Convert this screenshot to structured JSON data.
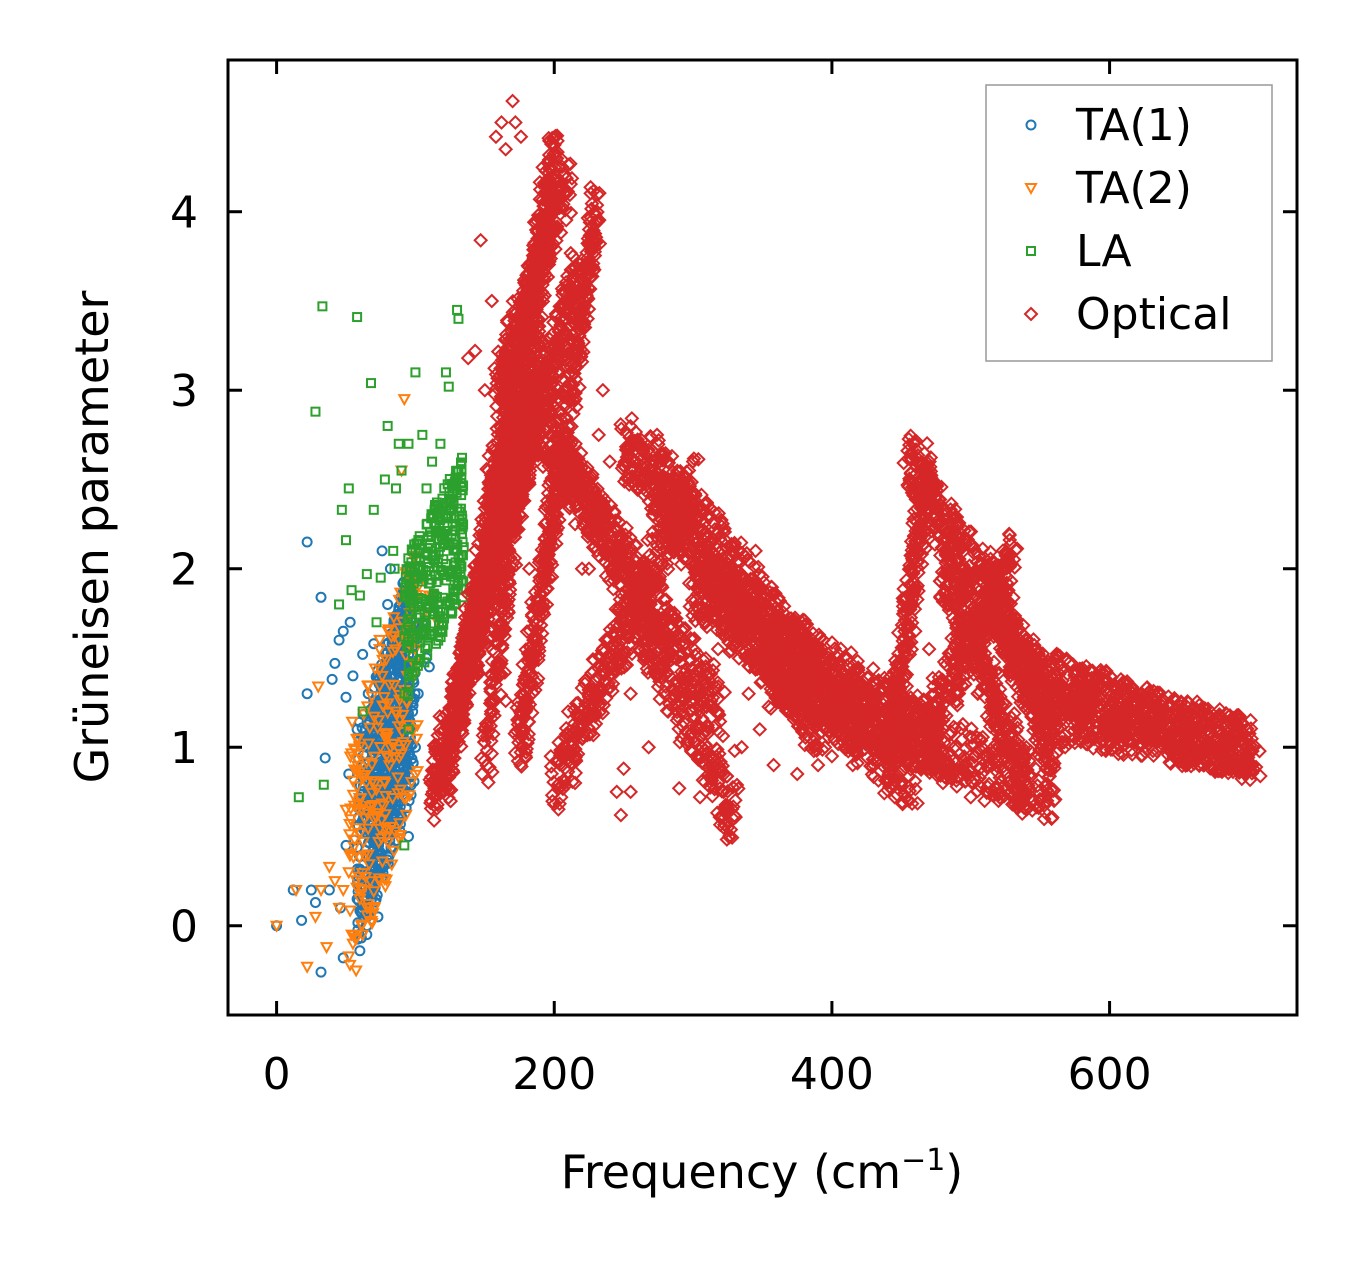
{
  "chart_data": {
    "type": "scatter",
    "title": "",
    "xlabel": "Frequency (cm",
    "xlabel_sup": "−1",
    "xlabel_close": ")",
    "ylabel": "Grüneisen parameter",
    "xlim": [
      -35,
      735
    ],
    "ylim": [
      -0.5,
      4.85
    ],
    "xticks": [
      0,
      200,
      400,
      600
    ],
    "xtick_labels": [
      "0",
      "200",
      "400",
      "600"
    ],
    "yticks": [
      0,
      1,
      2,
      3,
      4
    ],
    "ytick_labels": [
      "0",
      "1",
      "2",
      "3",
      "4"
    ],
    "legend_position": "top-right",
    "grid": false,
    "series": [
      {
        "name": "TA(1)",
        "marker": "circle",
        "color": "#1f77b4",
        "points": [
          [
            0,
            0
          ],
          [
            12,
            0.2
          ],
          [
            18,
            0.03
          ],
          [
            22,
            1.3
          ],
          [
            22,
            2.15
          ],
          [
            25,
            0.2
          ],
          [
            28,
            0.13
          ],
          [
            32,
            1.84
          ],
          [
            32,
            -0.26
          ],
          [
            35,
            0.94
          ],
          [
            38,
            0.2
          ],
          [
            40,
            1.38
          ],
          [
            42,
            1.47
          ],
          [
            45,
            1.6
          ],
          [
            46,
            0.1
          ],
          [
            48,
            1.65
          ],
          [
            48,
            -0.18
          ],
          [
            50,
            1.28
          ],
          [
            50,
            0.45
          ],
          [
            52,
            0.85
          ],
          [
            53,
            1.7
          ],
          [
            55,
            1.4
          ],
          [
            56,
            0.48
          ],
          [
            58,
            0.15
          ],
          [
            58,
            1.1
          ],
          [
            60,
            -0.14
          ],
          [
            60,
            0.7
          ],
          [
            62,
            1.52
          ],
          [
            63,
            0.35
          ],
          [
            65,
            -0.05
          ],
          [
            65,
            1.0
          ],
          [
            66,
            1.3
          ],
          [
            68,
            0.75
          ],
          [
            70,
            1.58
          ],
          [
            72,
            0.5
          ],
          [
            73,
            0.05
          ],
          [
            75,
            1.2
          ],
          [
            76,
            2.1
          ],
          [
            78,
            0.9
          ],
          [
            80,
            1.8
          ],
          [
            82,
            2.0
          ],
          [
            84,
            0.6
          ],
          [
            85,
            1.4
          ],
          [
            88,
            1.1
          ],
          [
            90,
            0.75
          ],
          [
            92,
            1.55
          ],
          [
            95,
            0.5
          ],
          [
            98,
            1.2
          ],
          [
            100,
            1.0
          ],
          [
            102,
            1.3
          ],
          [
            105,
            1.7
          ],
          [
            108,
            1.5
          ],
          [
            110,
            1.45
          ]
        ],
        "clouds": [
          {
            "x": [
              58,
              100
            ],
            "y": [
              0.15,
              1.75
            ],
            "n": 420,
            "slope": 0.032
          },
          {
            "x": [
              68,
              96
            ],
            "y": [
              0.4,
              1.8
            ],
            "n": 380,
            "slope": 0.0
          }
        ]
      },
      {
        "name": "TA(2)",
        "marker": "triangle-down",
        "color": "#ff7f0e",
        "points": [
          [
            0,
            0
          ],
          [
            14,
            0.2
          ],
          [
            22,
            -0.23
          ],
          [
            28,
            0.05
          ],
          [
            30,
            1.34
          ],
          [
            32,
            0.2
          ],
          [
            36,
            -0.12
          ],
          [
            38,
            0.33
          ],
          [
            42,
            0.25
          ],
          [
            45,
            0.1
          ],
          [
            48,
            0.2
          ],
          [
            50,
            0.65
          ],
          [
            52,
            0.3
          ],
          [
            55,
            -0.1
          ],
          [
            58,
            0.78
          ],
          [
            60,
            0.15
          ],
          [
            62,
            -0.05
          ],
          [
            66,
            0.4
          ],
          [
            70,
            0.6
          ],
          [
            74,
            0.25
          ],
          [
            78,
            0.8
          ],
          [
            82,
            1.0
          ],
          [
            86,
            1.2
          ],
          [
            88,
            1.6
          ],
          [
            90,
            2.55
          ],
          [
            92,
            2.95
          ],
          [
            94,
            1.4
          ],
          [
            96,
            1.75
          ],
          [
            100,
            1.55
          ],
          [
            102,
            1.9
          ],
          [
            106,
            1.75
          ],
          [
            110,
            1.85
          ],
          [
            112,
            1.85
          ],
          [
            116,
            1.7
          ]
        ],
        "clouds": [
          {
            "x": [
              52,
              102
            ],
            "y": [
              0.0,
              1.85
            ],
            "n": 220,
            "slope": 0.04
          }
        ]
      },
      {
        "name": "LA",
        "marker": "square",
        "color": "#2ca02c",
        "points": [
          [
            16,
            0.72
          ],
          [
            28,
            2.88
          ],
          [
            33,
            3.47
          ],
          [
            34,
            0.79
          ],
          [
            45,
            1.8
          ],
          [
            47,
            2.33
          ],
          [
            50,
            2.16
          ],
          [
            52,
            2.45
          ],
          [
            54,
            1.88
          ],
          [
            58,
            3.41
          ],
          [
            60,
            1.85
          ],
          [
            62,
            1.2
          ],
          [
            65,
            1.97
          ],
          [
            68,
            3.04
          ],
          [
            70,
            2.33
          ],
          [
            72,
            1.7
          ],
          [
            75,
            1.95
          ],
          [
            78,
            2.5
          ],
          [
            80,
            2.8
          ],
          [
            84,
            2.1
          ],
          [
            86,
            2.45
          ],
          [
            88,
            2.7
          ],
          [
            90,
            2.55
          ],
          [
            95,
            2.7
          ],
          [
            98,
            2.1
          ],
          [
            100,
            3.1
          ],
          [
            105,
            2.75
          ],
          [
            108,
            2.45
          ],
          [
            112,
            2.6
          ],
          [
            116,
            2.35
          ],
          [
            118,
            2.7
          ],
          [
            122,
            3.1
          ],
          [
            124,
            3.02
          ],
          [
            128,
            2.45
          ],
          [
            130,
            3.45
          ],
          [
            131,
            3.4
          ],
          [
            132,
            2.0
          ],
          [
            134,
            1.6
          ],
          [
            85,
            2.0
          ],
          [
            92,
            0.45
          ],
          [
            95,
            1.1
          ],
          [
            100,
            1.95
          ]
        ],
        "clouds": [
          {
            "x": [
              92,
              135
            ],
            "y": [
              1.45,
              2.45
            ],
            "n": 300,
            "slope": 0.012
          }
        ]
      },
      {
        "name": "Optical",
        "marker": "diamond",
        "color": "#d62728",
        "points": [
          [
            138,
            3.18
          ],
          [
            143,
            3.22
          ],
          [
            147,
            3.84
          ],
          [
            150,
            3.0
          ],
          [
            155,
            3.5
          ],
          [
            158,
            4.42
          ],
          [
            162,
            4.5
          ],
          [
            165,
            4.35
          ],
          [
            170,
            4.62
          ],
          [
            172,
            4.5
          ],
          [
            176,
            4.42
          ],
          [
            182,
            2.0
          ],
          [
            186,
            3.0
          ],
          [
            192,
            2.9
          ],
          [
            196,
            2.1
          ],
          [
            200,
            0.68
          ],
          [
            205,
            0.72
          ],
          [
            210,
            1.2
          ],
          [
            215,
            0.8
          ],
          [
            220,
            2.0
          ],
          [
            225,
            2.0
          ],
          [
            230,
            2.3
          ],
          [
            235,
            3.0
          ],
          [
            240,
            2.6
          ],
          [
            245,
            0.75
          ],
          [
            248,
            0.62
          ],
          [
            250,
            0.88
          ],
          [
            255,
            1.3
          ],
          [
            262,
            2.7
          ],
          [
            268,
            1.0
          ],
          [
            274,
            2.75
          ],
          [
            280,
            2.4
          ],
          [
            290,
            0.77
          ],
          [
            300,
            2.6
          ],
          [
            305,
            0.72
          ],
          [
            310,
            1.0
          ],
          [
            315,
            0.88
          ],
          [
            322,
            0.55
          ],
          [
            330,
            0.98
          ],
          [
            340,
            1.3
          ],
          [
            345,
            2.1
          ],
          [
            348,
            1.1
          ],
          [
            358,
            0.9
          ],
          [
            375,
            0.85
          ],
          [
            390,
            0.9
          ],
          [
            400,
            0.95
          ],
          [
            410,
            1.0
          ],
          [
            420,
            1.12
          ],
          [
            430,
            1.1
          ],
          [
            440,
            0.76
          ],
          [
            450,
            0.8
          ],
          [
            460,
            1.65
          ],
          [
            470,
            0.9
          ],
          [
            480,
            0.8
          ],
          [
            490,
            0.78
          ],
          [
            500,
            0.72
          ],
          [
            510,
            0.7
          ],
          [
            520,
            0.7
          ],
          [
            530,
            0.68
          ],
          [
            535,
            0.68
          ],
          [
            540,
            0.68
          ],
          [
            545,
            0.7
          ],
          [
            550,
            0.7
          ],
          [
            555,
            0.7
          ],
          [
            560,
            0.7
          ],
          [
            505,
            1.3
          ],
          [
            512,
            0.9
          ],
          [
            525,
            1.1
          ],
          [
            540,
            1.0
          ],
          [
            548,
            1.45
          ],
          [
            560,
            1.2
          ],
          [
            568,
            1.0
          ],
          [
            575,
            1.05
          ],
          [
            585,
            1.25
          ],
          [
            600,
            1.1
          ],
          [
            165,
            1.26
          ],
          [
            185,
            1.6
          ],
          [
            215,
            2.25
          ],
          [
            232,
            2.75
          ],
          [
            245,
            1.45
          ],
          [
            255,
            0.75
          ],
          [
            265,
            1.5
          ],
          [
            275,
            1.4
          ],
          [
            282,
            1.2
          ],
          [
            295,
            1.3
          ],
          [
            308,
            1.9
          ],
          [
            318,
            1.55
          ],
          [
            325,
            0.55
          ],
          [
            335,
            1.0
          ],
          [
            352,
            1.6
          ],
          [
            368,
            1.2
          ],
          [
            385,
            1.3
          ],
          [
            395,
            1.0
          ],
          [
            405,
            1.15
          ],
          [
            415,
            0.9
          ],
          [
            428,
            1.3
          ],
          [
            435,
            1.0
          ],
          [
            470,
            1.55
          ],
          [
            495,
            2.0
          ],
          [
            520,
            1.2
          ],
          [
            536,
            1.25
          ],
          [
            557,
            1.0
          ],
          [
            575,
            1.4
          ]
        ],
        "curves": [
          {
            "x": [
              112,
              215
            ],
            "y": [
              0.75,
              3.6
            ],
            "n": 700
          },
          {
            "x": [
              140,
              200
            ],
            "y": [
              1.5,
              4.3
            ],
            "n": 600
          },
          {
            "x": [
              160,
              210
            ],
            "y": [
              3.0,
              4.2
            ],
            "n": 300
          },
          {
            "x": [
              175,
              230
            ],
            "y": [
              1.0,
              4.0
            ],
            "n": 500
          },
          {
            "x": [
              180,
              320
            ],
            "y": [
              2.9,
              1.2
            ],
            "n": 500
          },
          {
            "x": [
              200,
              300
            ],
            "y": [
              0.8,
              2.5
            ],
            "n": 400
          },
          {
            "x": [
              210,
              330
            ],
            "y": [
              2.6,
              0.6
            ],
            "n": 400
          },
          {
            "x": [
              250,
              390
            ],
            "y": [
              2.7,
              1.1
            ],
            "n": 500
          },
          {
            "x": [
              270,
              420
            ],
            "y": [
              2.6,
              1.1
            ],
            "n": 500
          },
          {
            "x": [
              300,
              460
            ],
            "y": [
              1.9,
              0.8
            ],
            "n": 500
          },
          {
            "x": [
              330,
              480
            ],
            "y": [
              1.8,
              1.0
            ],
            "n": 400
          },
          {
            "x": [
              355,
              560
            ],
            "y": [
              1.4,
              0.75
            ],
            "n": 500
          },
          {
            "x": [
              440,
              470
            ],
            "y": [
              0.9,
              2.6
            ],
            "n": 250
          },
          {
            "x": [
              455,
              560
            ],
            "y": [
              2.6,
              1.2
            ],
            "n": 450
          },
          {
            "x": [
              460,
              530
            ],
            "y": [
              1.0,
              2.05
            ],
            "n": 300
          },
          {
            "x": [
              480,
              540
            ],
            "y": [
              2.05,
              0.75
            ],
            "n": 300
          },
          {
            "x": [
              510,
              560
            ],
            "y": [
              1.95,
              1.0
            ],
            "n": 250
          },
          {
            "x": [
              540,
              705
            ],
            "y": [
              1.4,
              0.97
            ],
            "n": 600
          },
          {
            "x": [
              560,
              700
            ],
            "y": [
              1.2,
              1.0
            ],
            "n": 400
          },
          {
            "x": [
              150,
              190
            ],
            "y": [
              0.9,
              3.5
            ],
            "n": 300
          },
          {
            "x": [
              120,
              170
            ],
            "y": [
              0.75,
              3.1
            ],
            "n": 350
          },
          {
            "x": [
              130,
              180
            ],
            "y": [
              1.2,
              3.0
            ],
            "n": 300
          }
        ]
      }
    ]
  }
}
